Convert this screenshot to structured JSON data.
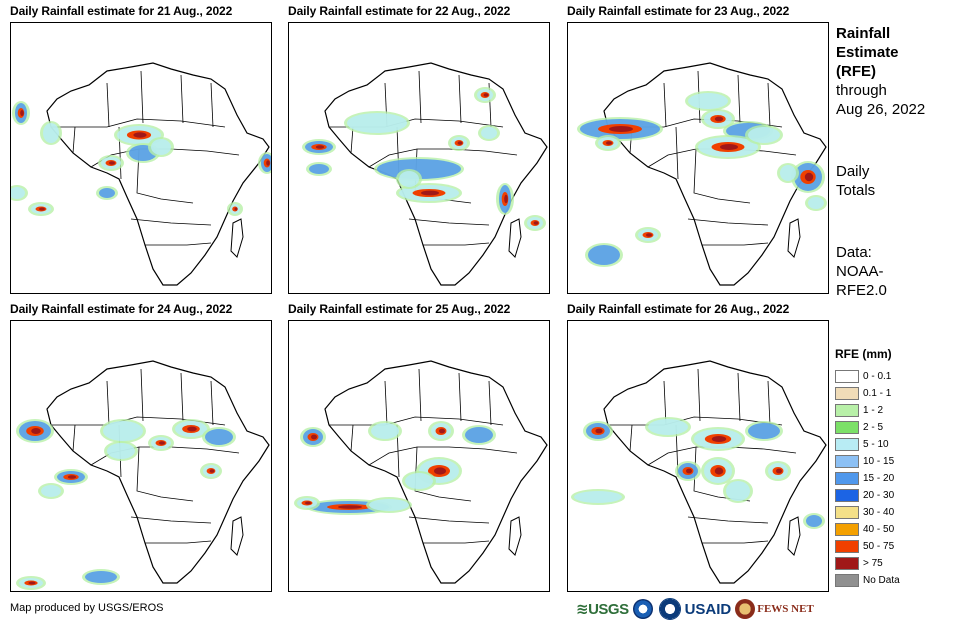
{
  "panels": [
    {
      "title": "Daily Rainfall estimate for 21 Aug., 2022"
    },
    {
      "title": "Daily Rainfall estimate for 22 Aug., 2022"
    },
    {
      "title": "Daily Rainfall estimate for 23 Aug., 2022"
    },
    {
      "title": "Daily Rainfall estimate for 24 Aug., 2022"
    },
    {
      "title": "Daily Rainfall estimate for 25 Aug., 2022"
    },
    {
      "title": "Daily Rainfall estimate for 26 Aug., 2022"
    }
  ],
  "sidebar": {
    "title_line1": "Rainfall",
    "title_line2": "Estimate",
    "title_line3": "(RFE)",
    "through_label": "through",
    "through_date": "Aug 26, 2022",
    "totals_line1": "Daily",
    "totals_line2": "Totals",
    "data_line1": "Data:",
    "data_line2": "NOAA-",
    "data_line3": "RFE2.0"
  },
  "legend": {
    "title": "RFE (mm)",
    "items": [
      {
        "label": "0 - 0.1",
        "color": "#ffffff"
      },
      {
        "label": "0.1 - 1",
        "color": "#f0dcb8"
      },
      {
        "label": "1 - 2",
        "color": "#b8f0a8"
      },
      {
        "label": "2 - 5",
        "color": "#7ce068"
      },
      {
        "label": "5 - 10",
        "color": "#b8ecf4"
      },
      {
        "label": "10 - 15",
        "color": "#8cc0f4"
      },
      {
        "label": "15 - 20",
        "color": "#5098ec"
      },
      {
        "label": "20 - 30",
        "color": "#1c64e4"
      },
      {
        "label": "30 - 40",
        "color": "#f4e088"
      },
      {
        "label": "40 - 50",
        "color": "#f4a000"
      },
      {
        "label": "50 - 75",
        "color": "#f04000"
      },
      {
        "label": "> 75",
        "color": "#a01818"
      },
      {
        "label": "No Data",
        "color": "#909090"
      }
    ]
  },
  "footer": {
    "credit": "Map produced by USGS/EROS"
  },
  "logos": {
    "usgs": "≋USGS",
    "usaid": "USAID",
    "fews": "FEWS NET"
  }
}
